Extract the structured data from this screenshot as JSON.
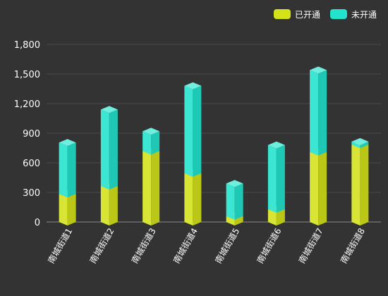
{
  "chart_data": {
    "type": "bar",
    "stacked": true,
    "style": "3d-column",
    "categories": [
      "南城街道1",
      "南城街道2",
      "南城街道3",
      "南城街道4",
      "南城街道5",
      "南城街道6",
      "南城街道7",
      "南城街道8"
    ],
    "series": [
      {
        "name": "已开通",
        "values": [
          285,
          365,
          720,
          495,
          60,
          130,
          710,
          785
        ],
        "color": "#d4e21a"
      },
      {
        "name": "未开通",
        "values": [
          520,
          775,
          200,
          885,
          330,
          650,
          830,
          30
        ],
        "color": "#22e3cc"
      }
    ],
    "ylim": [
      0,
      1800
    ],
    "yticks": [
      "0",
      "300",
      "600",
      "900",
      "1,200",
      "1,500",
      "1,800"
    ],
    "ytick_values": [
      0,
      300,
      600,
      900,
      1200,
      1500,
      1800
    ],
    "grid": true,
    "legend_position": "top-right",
    "background": "#333333"
  }
}
